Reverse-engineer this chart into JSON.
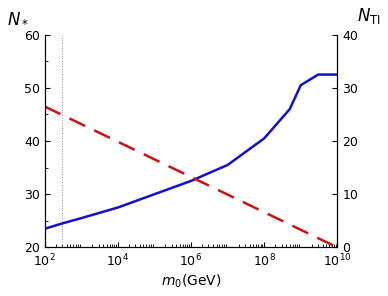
{
  "xlim": [
    100,
    10000000000
  ],
  "ylim_left": [
    20,
    60
  ],
  "ylim_right": [
    0,
    40
  ],
  "xlabel": "$m_0$(GeV)",
  "ylabel_left": "$N_*$",
  "ylabel_right": "$N_{\\mathrm{TI}}$",
  "blue_x": [
    100,
    300,
    1000,
    10000,
    100000,
    1000000,
    10000000,
    100000000,
    500000000,
    1000000000,
    3000000000,
    10000000000
  ],
  "blue_y": [
    23.5,
    24.5,
    25.5,
    27.5,
    30.0,
    32.5,
    35.5,
    40.5,
    46.0,
    50.5,
    52.5,
    52.5
  ],
  "red_x": [
    100,
    10000000000
  ],
  "red_y": [
    46.5,
    20.0
  ],
  "vline_x": 300,
  "blue_color": "#1111cc",
  "red_color": "#cc1111",
  "vline_color": "#888888",
  "background_color": "#ffffff",
  "yticks_left": [
    20,
    30,
    40,
    50,
    60
  ],
  "yticks_right": [
    0,
    10,
    20,
    30,
    40
  ],
  "xticks": [
    100,
    10000,
    1000000,
    100000000,
    10000000000
  ],
  "xtick_labels": [
    "$10^2$",
    "$10^4$",
    "$10^6$",
    "$10^8$",
    "$10^{10}$"
  ],
  "blue_linewidth": 1.8,
  "red_linewidth": 1.8,
  "vline_linewidth": 0.7,
  "tick_fontsize": 9,
  "xlabel_fontsize": 10,
  "ylabel_fontsize": 12
}
